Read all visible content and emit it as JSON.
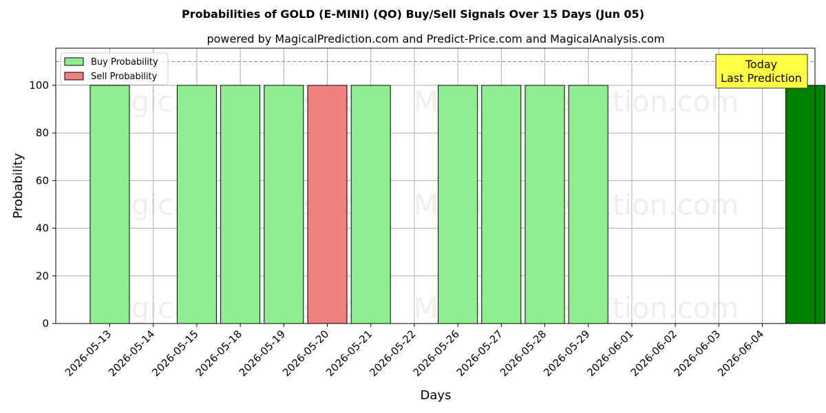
{
  "chart_data": {
    "type": "bar",
    "title": "Probabilities of GOLD (E-MINI) (QO) Buy/Sell Signals Over 15 Days (Jun 05)",
    "subtitle": "powered by MagicalPrediction.com and Predict-Price.com and MagicalAnalysis.com",
    "xlabel": "Days",
    "ylabel": "Probability",
    "ylim": [
      0,
      115
    ],
    "yticks": [
      0,
      20,
      40,
      60,
      80,
      100
    ],
    "grid": true,
    "legend_position": "top-left",
    "categories": [
      "2026-05-13",
      "2026-05-14",
      "2026-05-15",
      "2026-05-18",
      "2026-05-19",
      "2026-05-20",
      "2026-05-21",
      "2026-05-22",
      "2026-05-26",
      "2026-05-27",
      "2026-05-28",
      "2026-05-29",
      "2026-06-01",
      "2026-06-02",
      "2026-06-03",
      "2026-06-04"
    ],
    "series": [
      {
        "name": "Buy Probability",
        "color": "#90ee90",
        "values": [
          100,
          null,
          100,
          100,
          100,
          null,
          100,
          null,
          100,
          100,
          100,
          100,
          null,
          null,
          null,
          null
        ]
      },
      {
        "name": "Sell Probability",
        "color": "#f08080",
        "values": [
          null,
          null,
          null,
          null,
          null,
          100,
          null,
          null,
          null,
          null,
          null,
          null,
          null,
          null,
          null,
          null
        ]
      }
    ],
    "today_bar": {
      "value": 100,
      "color": "#008000"
    },
    "reference_line": {
      "y": 110,
      "style": "dashed",
      "color": "#808080"
    },
    "annotation": {
      "lines": [
        "Today",
        "Last Prediction"
      ],
      "background": "#ffff44"
    },
    "watermarks": [
      "MagicalAnalysis.com",
      "MagicalPrediction.com"
    ]
  }
}
